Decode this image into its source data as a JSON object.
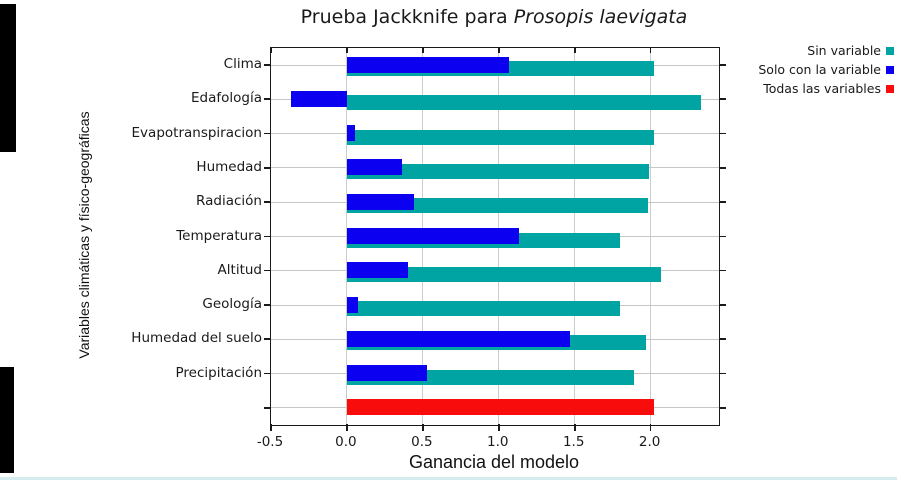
{
  "chart_data": {
    "type": "bar",
    "orientation": "horizontal",
    "title_prefix": "Prueba Jackknife para ",
    "title_species_italic": "Prosopis laevigata",
    "xlabel": "Ganancia del modelo",
    "ylabel": "Variables climáticas y físico-geográficas",
    "xlim": [
      -0.5,
      2.45
    ],
    "xticks": [
      -0.5,
      0,
      0.5,
      1,
      1.5,
      2
    ],
    "xtick_labels": [
      "-0.5",
      "0.0",
      "0.5",
      "1.0",
      "1.5",
      "2.0"
    ],
    "grid": true,
    "legend_position": "top-right",
    "categories": [
      "Clima",
      "Edafología",
      "Evapotranspiracion",
      "Humedad",
      "Radiación",
      "Temperatura",
      "Altitud",
      "Geología",
      "Humedad del suelo",
      "Precipitación",
      ""
    ],
    "series": [
      {
        "name": "Sin variable",
        "color": "#00a5a3",
        "values": [
          2.02,
          2.33,
          2.02,
          1.99,
          1.98,
          1.8,
          2.07,
          1.8,
          1.97,
          1.89,
          null
        ]
      },
      {
        "name": "Solo con la variable",
        "color": "#0c00f0",
        "values": [
          1.07,
          -0.37,
          0.05,
          0.36,
          0.44,
          1.13,
          0.4,
          0.07,
          1.47,
          0.53,
          null
        ]
      },
      {
        "name": "Todas las variables",
        "color": "#f80c0c",
        "values": [
          null,
          null,
          null,
          null,
          null,
          null,
          null,
          null,
          null,
          null,
          2.02
        ]
      }
    ]
  }
}
